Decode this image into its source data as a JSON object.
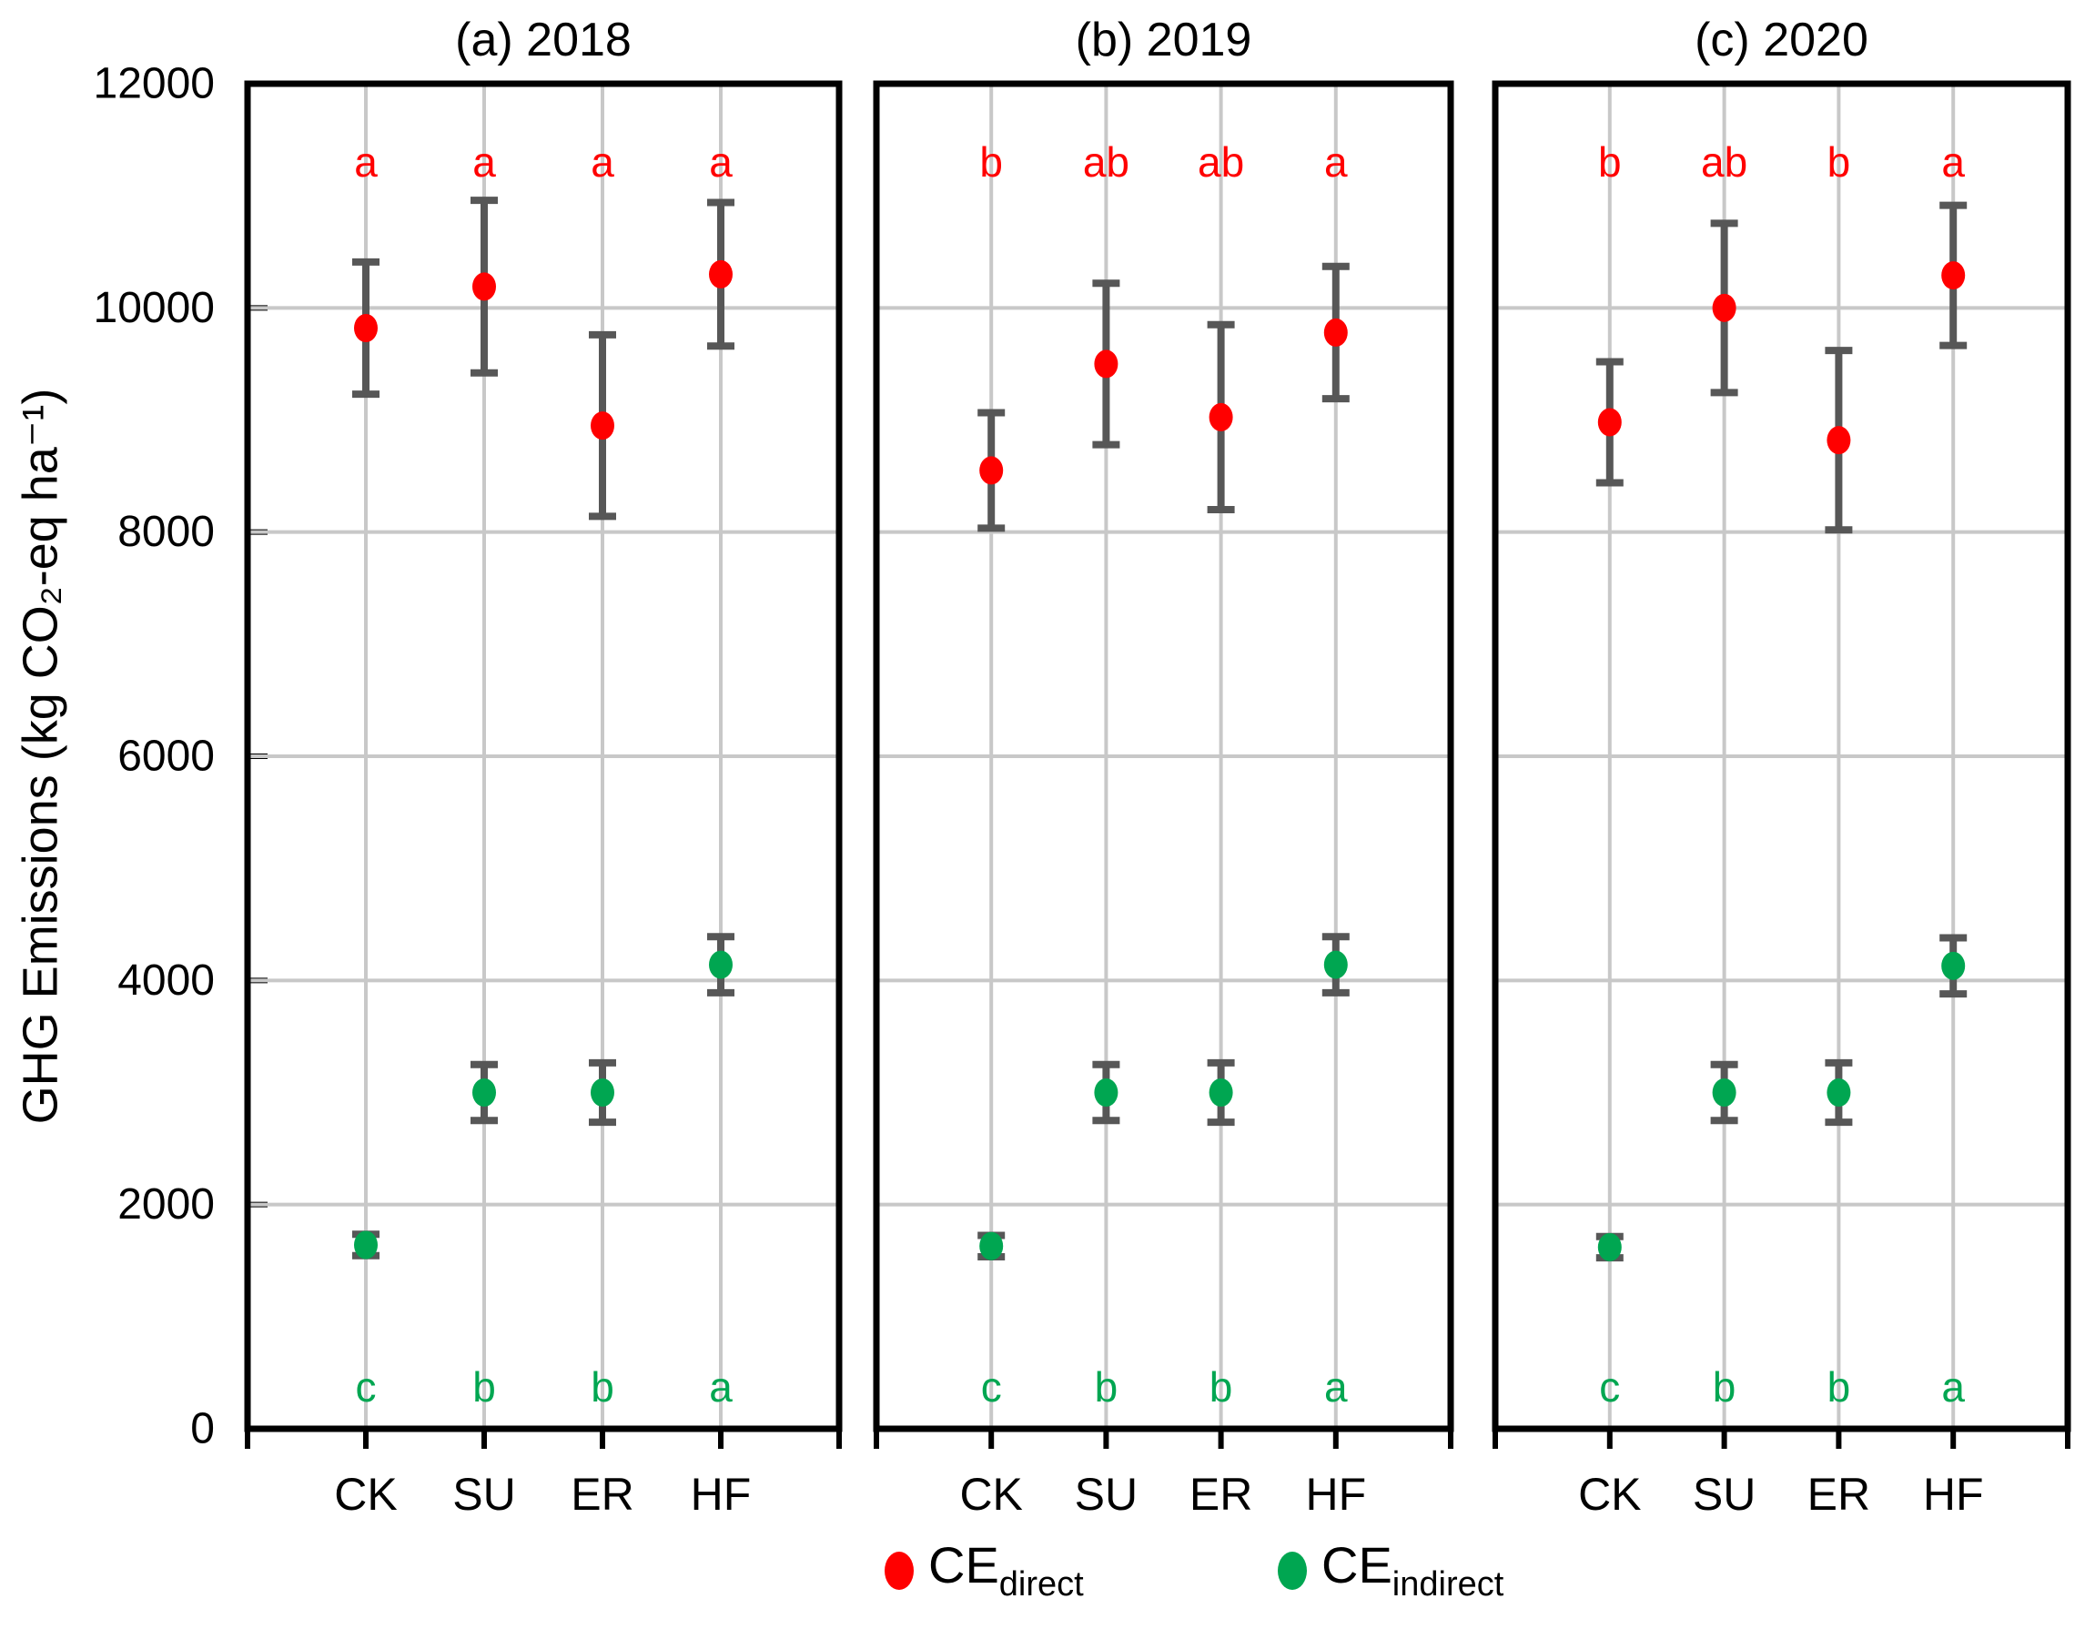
{
  "figure": {
    "y_axis_label": "GHG Emissions (kg CO₂-eq ha⁻¹)",
    "legend": [
      {
        "main": "CE",
        "sub": "direct",
        "color": "#ff0000"
      },
      {
        "main": "CE",
        "sub": "indirect",
        "color": "#00a651"
      }
    ]
  },
  "chart_data": {
    "type": "scatter",
    "title": "",
    "ylabel": "GHG Emissions (kg CO₂-eq ha⁻¹)",
    "ylim": [
      0,
      12000
    ],
    "yticks": [
      0,
      2000,
      4000,
      6000,
      8000,
      10000,
      12000
    ],
    "categories": [
      "CK",
      "SU",
      "ER",
      "HF"
    ],
    "grid": true,
    "legend_position": "bottom-center",
    "colors": {
      "CE_direct": "#ff0000",
      "CE_indirect": "#00a651",
      "error_bar": "#575757",
      "gridline": "#c8c8c8",
      "border": "#000000"
    },
    "panels": [
      {
        "id": "a",
        "title": "(a) 2018",
        "series": [
          {
            "name": "CE_direct",
            "values": [
              9820,
              10190,
              8950,
              10300
            ],
            "err": [
              590,
              770,
              810,
              640
            ],
            "letters": [
              "a",
              "a",
              "a",
              "a"
            ]
          },
          {
            "name": "CE_indirect",
            "values": [
              1640,
              3000,
              3000,
              4140
            ],
            "err": [
              95,
              250,
              265,
              250
            ],
            "letters": [
              "c",
              "b",
              "b",
              "a"
            ]
          }
        ]
      },
      {
        "id": "b",
        "title": "(b) 2019",
        "series": [
          {
            "name": "CE_direct",
            "values": [
              8550,
              9500,
              9025,
              9780
            ],
            "err": [
              515,
              720,
              825,
              590
            ],
            "letters": [
              "b",
              "ab",
              "ab",
              "a"
            ]
          },
          {
            "name": "CE_indirect",
            "values": [
              1630,
              3000,
              3000,
              4140
            ],
            "err": [
              95,
              250,
              265,
              250
            ],
            "letters": [
              "c",
              "b",
              "b",
              "a"
            ]
          }
        ]
      },
      {
        "id": "c",
        "title": "(c) 2020",
        "series": [
          {
            "name": "CE_direct",
            "values": [
              8980,
              10000,
              8820,
              10290
            ],
            "err": [
              540,
              755,
              800,
              625
            ],
            "letters": [
              "b",
              "ab",
              "b",
              "a"
            ]
          },
          {
            "name": "CE_indirect",
            "values": [
              1620,
              3000,
              3000,
              4130
            ],
            "err": [
              95,
              250,
              265,
              250
            ],
            "letters": [
              "c",
              "b",
              "b",
              "a"
            ]
          }
        ]
      }
    ]
  }
}
